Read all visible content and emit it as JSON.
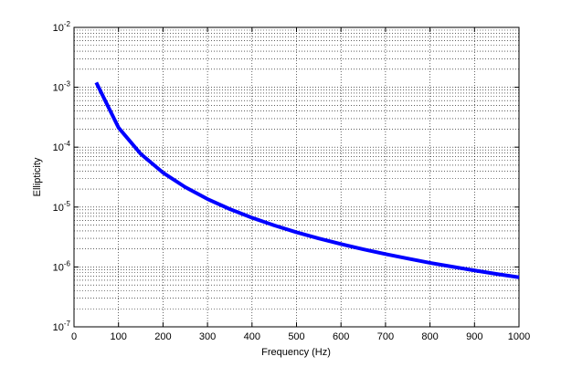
{
  "chart_data": {
    "type": "line",
    "xlabel": "Frequency (Hz)",
    "ylabel": "Ellipticity",
    "x": [
      50,
      100,
      150,
      200,
      250,
      300,
      350,
      400,
      450,
      500,
      550,
      600,
      650,
      700,
      750,
      800,
      850,
      900,
      950,
      1000
    ],
    "series": [
      {
        "color": "#0000ff",
        "values": [
          0.0012,
          0.000212,
          7.7e-05,
          3.75e-05,
          2.15e-05,
          1.36e-05,
          9.26e-06,
          6.63e-06,
          4.94e-06,
          3.79e-06,
          2.99e-06,
          2.41e-06,
          1.97e-06,
          1.64e-06,
          1.38e-06,
          1.17e-06,
          1.01e-06,
          8.73e-07,
          7.63e-07,
          6.71e-07
        ]
      }
    ],
    "xlim": [
      0,
      1000
    ],
    "xticks": [
      0,
      100,
      200,
      300,
      400,
      500,
      600,
      700,
      800,
      900,
      1000
    ],
    "ylim": [
      1e-07,
      0.01
    ],
    "ylog": true,
    "yticks": [
      {
        "value": 1e-07,
        "label": "10-7"
      },
      {
        "value": 1e-06,
        "label": "10-6"
      },
      {
        "value": 1e-05,
        "label": "10-5"
      },
      {
        "value": 0.0001,
        "label": "10-4"
      },
      {
        "value": 0.001,
        "label": "10-3"
      },
      {
        "value": 0.01,
        "label": "10-2"
      }
    ],
    "grid": true,
    "minor_grid": true
  }
}
